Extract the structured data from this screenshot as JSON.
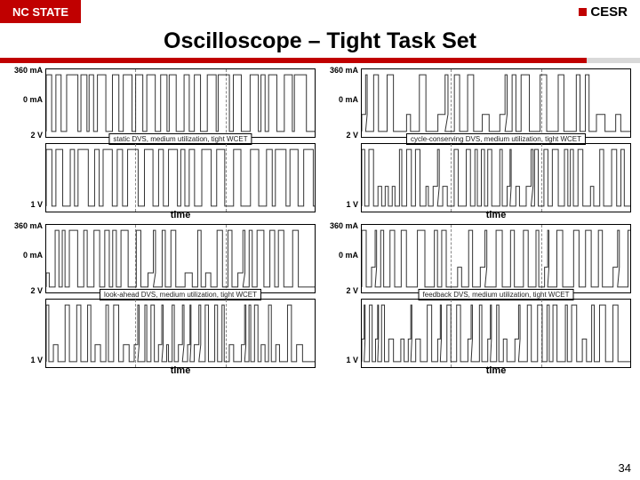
{
  "header": {
    "nc_label": "NC STATE",
    "cesr_label": "CESR"
  },
  "title": "Oscilloscope – Tight Task Set",
  "page_number": "34",
  "axis_labels": {
    "current_top": "360 mA",
    "current_bot": "0 mA",
    "volt_top": "2 V",
    "volt_bot": "1 V",
    "time": "time"
  },
  "style": {
    "trace_color": "#333333",
    "trace_width": 1,
    "grid_color": "#888888",
    "border_color": "#000000",
    "bg": "#ffffff",
    "minor_v_positions": [
      0.33,
      0.67
    ]
  },
  "panels": [
    {
      "id": "tl",
      "caption": "static DVS, medium utilization, tight WCET",
      "current": {
        "duty": 0.65,
        "periods": 22,
        "seed": 11
      },
      "voltage": {
        "duty": 0.6,
        "periods": 22,
        "seed": 13
      }
    },
    {
      "id": "tr",
      "caption": "cycle-conserving DVS, medium utilization, tight WCET",
      "current": {
        "duty": 0.4,
        "periods": 18,
        "seed": 21,
        "mid": 0.3
      },
      "voltage": {
        "duty": 0.45,
        "periods": 30,
        "seed": 23,
        "mid": 0.35
      }
    },
    {
      "id": "bl",
      "caption": "look-ahead DVS, medium utilization, tight WCET",
      "current": {
        "duty": 0.45,
        "periods": 24,
        "seed": 31,
        "mid": 0.25
      },
      "voltage": {
        "duty": 0.42,
        "periods": 30,
        "seed": 33,
        "mid": 0.3
      }
    },
    {
      "id": "br",
      "caption": "feedback DVS, medium utilization, tight WCET",
      "current": {
        "duty": 0.35,
        "periods": 22,
        "seed": 41,
        "mid": 0.35
      },
      "voltage": {
        "duty": 0.38,
        "periods": 28,
        "seed": 43,
        "mid": 0.4
      }
    }
  ]
}
